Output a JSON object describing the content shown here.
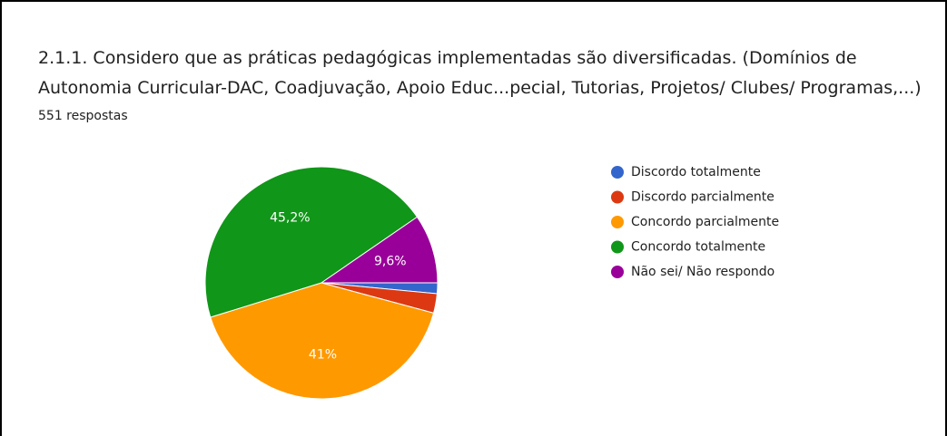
{
  "chart_data": {
    "type": "pie",
    "title": "2.1.1. Considero que as práticas pedagógicas implementadas são diversificadas. (Domínios de Autonomia Curricular-DAC, Coadjuvação, Apoio Educ...pecial, Tutorias, Projetos/ Clubes/ Programas,...)",
    "subtitle": "551 respostas",
    "categories": [
      "Discordo totalmente",
      "Discordo parcialmente",
      "Concordo parcialmente",
      "Concordo totalmente",
      "Não sei/ Não respondo"
    ],
    "values": [
      1.5,
      2.7,
      41,
      45.2,
      9.6
    ],
    "value_labels": [
      null,
      null,
      "41%",
      "45,2%",
      "9,6%"
    ],
    "colors": [
      "#3366cc",
      "#dc3912",
      "#ff9900",
      "#109618",
      "#990099"
    ],
    "legend": "right"
  }
}
